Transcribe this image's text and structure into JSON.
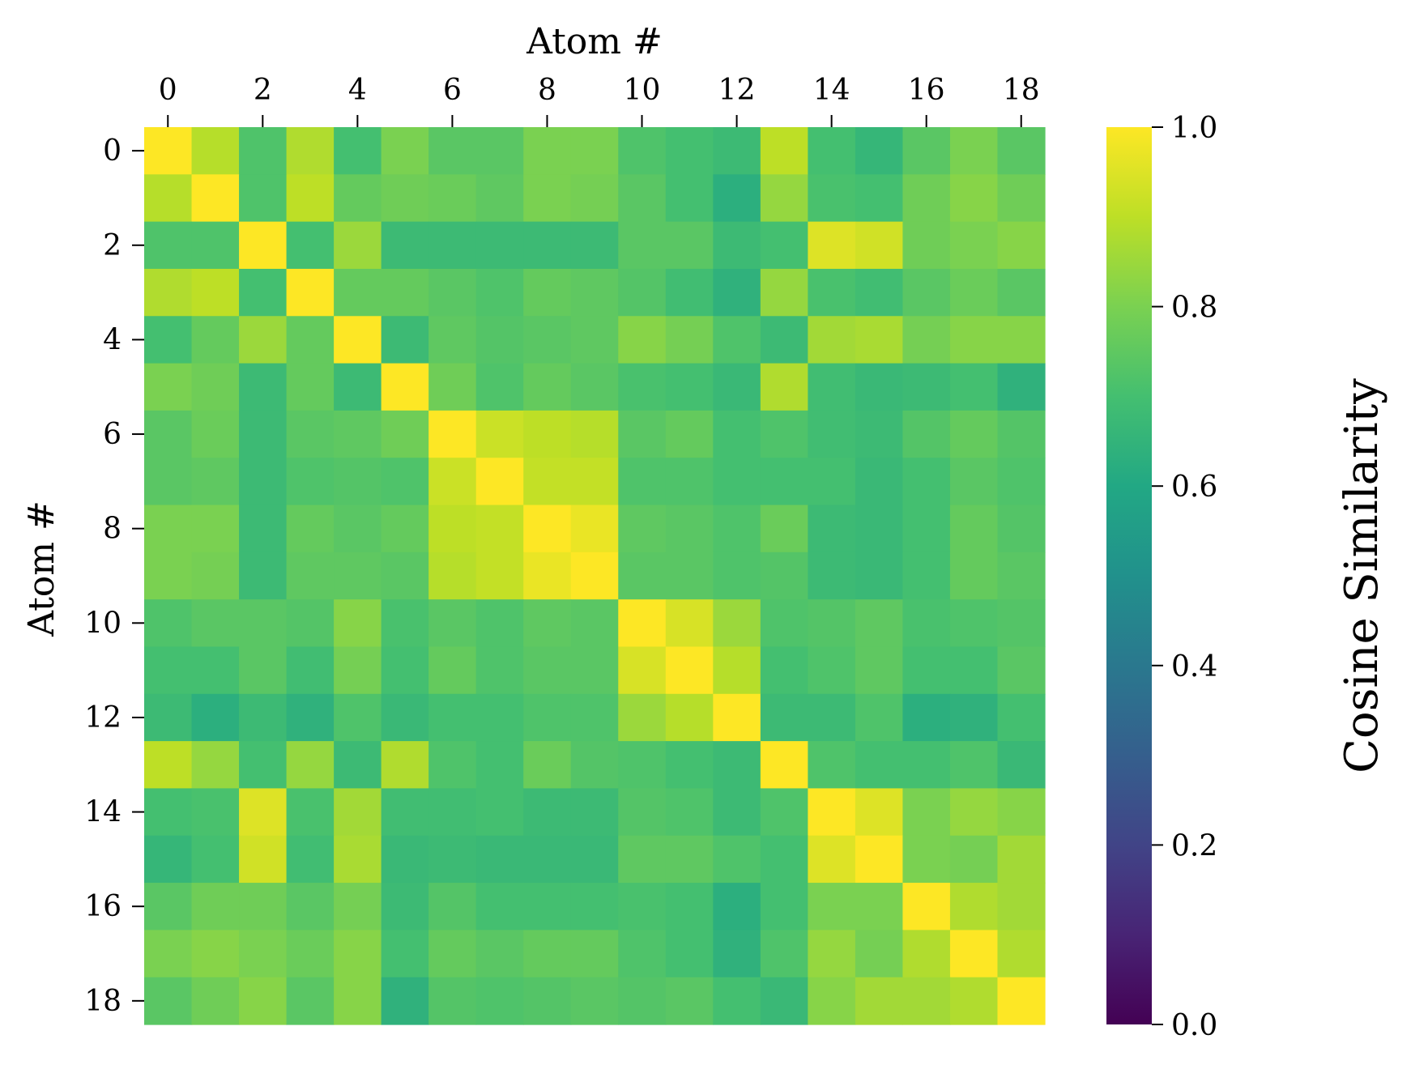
{
  "chart_data": {
    "type": "heatmap",
    "title": "",
    "xlabel": "Atom #",
    "ylabel": "Atom #",
    "x_axis_position": "top",
    "x_ticks": [
      0,
      2,
      4,
      6,
      8,
      10,
      12,
      14,
      16,
      18
    ],
    "y_ticks": [
      0,
      2,
      4,
      6,
      8,
      10,
      12,
      14,
      16,
      18
    ],
    "n": 19,
    "colormap": "viridis",
    "vmin": 0.0,
    "vmax": 1.0,
    "colorbar": {
      "label": "Cosine Similarity",
      "ticks": [
        0.0,
        0.2,
        0.4,
        0.6,
        0.8,
        1.0
      ],
      "tick_labels": [
        "0.0",
        "0.2",
        "0.4",
        "0.6",
        "0.8",
        "1.0"
      ]
    },
    "matrix": [
      [
        1.0,
        0.89,
        0.72,
        0.88,
        0.7,
        0.8,
        0.74,
        0.74,
        0.8,
        0.8,
        0.72,
        0.7,
        0.68,
        0.9,
        0.7,
        0.66,
        0.74,
        0.8,
        0.74
      ],
      [
        0.89,
        1.0,
        0.72,
        0.9,
        0.76,
        0.78,
        0.77,
        0.75,
        0.8,
        0.79,
        0.74,
        0.7,
        0.63,
        0.84,
        0.71,
        0.7,
        0.78,
        0.82,
        0.78
      ],
      [
        0.72,
        0.72,
        1.0,
        0.7,
        0.85,
        0.68,
        0.68,
        0.68,
        0.68,
        0.68,
        0.74,
        0.74,
        0.68,
        0.7,
        0.95,
        0.93,
        0.78,
        0.8,
        0.82
      ],
      [
        0.88,
        0.9,
        0.7,
        1.0,
        0.76,
        0.76,
        0.74,
        0.72,
        0.76,
        0.75,
        0.73,
        0.69,
        0.64,
        0.84,
        0.71,
        0.69,
        0.74,
        0.77,
        0.74
      ],
      [
        0.7,
        0.76,
        0.85,
        0.76,
        1.0,
        0.68,
        0.75,
        0.73,
        0.74,
        0.75,
        0.82,
        0.79,
        0.72,
        0.68,
        0.86,
        0.87,
        0.79,
        0.82,
        0.82
      ],
      [
        0.8,
        0.78,
        0.68,
        0.76,
        0.68,
        1.0,
        0.78,
        0.72,
        0.76,
        0.74,
        0.71,
        0.7,
        0.67,
        0.88,
        0.69,
        0.67,
        0.68,
        0.7,
        0.64
      ],
      [
        0.74,
        0.77,
        0.68,
        0.74,
        0.75,
        0.78,
        1.0,
        0.92,
        0.9,
        0.89,
        0.74,
        0.76,
        0.7,
        0.72,
        0.69,
        0.68,
        0.73,
        0.76,
        0.73
      ],
      [
        0.74,
        0.75,
        0.68,
        0.72,
        0.73,
        0.72,
        0.92,
        1.0,
        0.91,
        0.91,
        0.72,
        0.72,
        0.7,
        0.7,
        0.7,
        0.67,
        0.7,
        0.74,
        0.72
      ],
      [
        0.8,
        0.8,
        0.68,
        0.76,
        0.74,
        0.76,
        0.9,
        0.91,
        1.0,
        0.97,
        0.75,
        0.74,
        0.72,
        0.77,
        0.68,
        0.67,
        0.7,
        0.76,
        0.73
      ],
      [
        0.8,
        0.79,
        0.68,
        0.75,
        0.75,
        0.74,
        0.89,
        0.91,
        0.97,
        1.0,
        0.74,
        0.74,
        0.72,
        0.73,
        0.68,
        0.67,
        0.7,
        0.76,
        0.74
      ],
      [
        0.72,
        0.74,
        0.74,
        0.73,
        0.82,
        0.71,
        0.74,
        0.72,
        0.75,
        0.74,
        1.0,
        0.94,
        0.85,
        0.72,
        0.73,
        0.75,
        0.71,
        0.72,
        0.73
      ],
      [
        0.7,
        0.7,
        0.74,
        0.69,
        0.79,
        0.7,
        0.76,
        0.72,
        0.74,
        0.74,
        0.94,
        1.0,
        0.89,
        0.7,
        0.72,
        0.75,
        0.7,
        0.7,
        0.74
      ],
      [
        0.68,
        0.63,
        0.68,
        0.64,
        0.72,
        0.67,
        0.7,
        0.7,
        0.72,
        0.72,
        0.85,
        0.89,
        1.0,
        0.68,
        0.68,
        0.72,
        0.63,
        0.64,
        0.7
      ],
      [
        0.9,
        0.84,
        0.7,
        0.84,
        0.68,
        0.88,
        0.72,
        0.7,
        0.77,
        0.73,
        0.72,
        0.7,
        0.68,
        1.0,
        0.72,
        0.7,
        0.7,
        0.72,
        0.67
      ],
      [
        0.7,
        0.71,
        0.95,
        0.71,
        0.86,
        0.69,
        0.69,
        0.7,
        0.68,
        0.68,
        0.73,
        0.72,
        0.68,
        0.72,
        1.0,
        0.95,
        0.8,
        0.84,
        0.82
      ],
      [
        0.66,
        0.7,
        0.93,
        0.69,
        0.87,
        0.67,
        0.68,
        0.67,
        0.67,
        0.67,
        0.75,
        0.75,
        0.72,
        0.7,
        0.95,
        1.0,
        0.8,
        0.79,
        0.86
      ],
      [
        0.74,
        0.78,
        0.78,
        0.74,
        0.79,
        0.68,
        0.73,
        0.7,
        0.7,
        0.7,
        0.71,
        0.7,
        0.63,
        0.7,
        0.8,
        0.8,
        1.0,
        0.88,
        0.86
      ],
      [
        0.8,
        0.82,
        0.8,
        0.77,
        0.82,
        0.7,
        0.76,
        0.74,
        0.76,
        0.76,
        0.72,
        0.7,
        0.64,
        0.72,
        0.84,
        0.79,
        0.88,
        1.0,
        0.88
      ],
      [
        0.74,
        0.78,
        0.82,
        0.74,
        0.82,
        0.64,
        0.73,
        0.72,
        0.73,
        0.74,
        0.73,
        0.74,
        0.7,
        0.67,
        0.82,
        0.86,
        0.86,
        0.88,
        1.0
      ]
    ]
  }
}
